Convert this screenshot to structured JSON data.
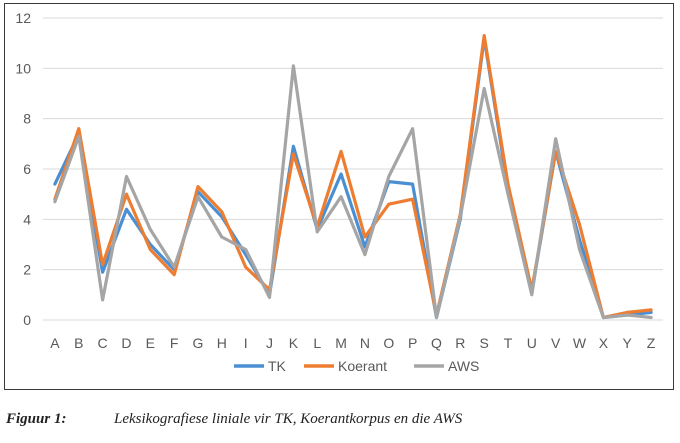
{
  "chart_data": {
    "type": "line",
    "categories": [
      "A",
      "B",
      "C",
      "D",
      "E",
      "F",
      "G",
      "H",
      "I",
      "J",
      "K",
      "L",
      "M",
      "N",
      "O",
      "P",
      "Q",
      "R",
      "S",
      "T",
      "U",
      "V",
      "W",
      "X",
      "Y",
      "Z"
    ],
    "ylim": [
      0,
      12
    ],
    "yticks": [
      "0",
      "2",
      "4",
      "6",
      "8",
      "10",
      "12"
    ],
    "grid": true,
    "legend_position": "bottom",
    "series": [
      {
        "name": "TK",
        "color": "#4a8fd4",
        "values": [
          5.4,
          7.4,
          1.9,
          4.4,
          3.0,
          2.0,
          5.1,
          4.1,
          2.6,
          1.0,
          6.9,
          3.6,
          5.8,
          2.9,
          5.5,
          5.4,
          0.1,
          4.0,
          11.2,
          5.2,
          1.1,
          6.7,
          3.2,
          0.1,
          0.2,
          0.3
        ]
      },
      {
        "name": "Koerant",
        "color": "#ed7d31",
        "values": [
          4.8,
          7.6,
          2.2,
          5.0,
          2.8,
          1.8,
          5.3,
          4.3,
          2.1,
          1.2,
          6.6,
          3.7,
          6.7,
          3.3,
          4.6,
          4.8,
          0.2,
          4.2,
          11.3,
          5.4,
          1.2,
          6.7,
          3.8,
          0.1,
          0.3,
          0.4
        ]
      },
      {
        "name": "AWS",
        "color": "#a5a5a5",
        "values": [
          4.7,
          7.3,
          0.8,
          5.7,
          3.6,
          2.1,
          4.9,
          3.3,
          2.8,
          0.9,
          10.1,
          3.5,
          4.9,
          2.6,
          5.7,
          7.6,
          0.1,
          4.1,
          9.2,
          5.0,
          1.0,
          7.2,
          2.8,
          0.1,
          0.2,
          0.1
        ]
      }
    ]
  },
  "caption": {
    "label": "Figuur 1:",
    "text": "Leksikografiese liniale vir TK, Koerantkorpus en die AWS"
  }
}
